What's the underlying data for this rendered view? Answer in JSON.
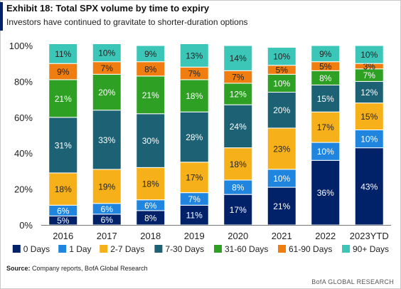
{
  "header": {
    "title": "Exhibit 18: Total SPX volume by time to expiry",
    "subtitle": "Investors have continued to gravitate to shorter-duration options"
  },
  "footer": {
    "source_label": "Source:",
    "source_text": "Company reports, BofA Global Research",
    "brand": "BofA GLOBAL RESEARCH"
  },
  "chart_data": {
    "type": "bar",
    "stacked": true,
    "normalized": true,
    "categories": [
      "2016",
      "2017",
      "2018",
      "2019",
      "2020",
      "2021",
      "2022",
      "2023YTD"
    ],
    "ylim": [
      0,
      100
    ],
    "yticks": [
      "0%",
      "20%",
      "40%",
      "60%",
      "80%",
      "100%"
    ],
    "grid": false,
    "legend_position": "bottom",
    "series": [
      {
        "name": "0 Days",
        "color": "#012169",
        "values": [
          5,
          6,
          8,
          11,
          17,
          21,
          36,
          43
        ],
        "labels": [
          "5%",
          "6%",
          "8%",
          "11%",
          "17%",
          "21%",
          "36%",
          "43%"
        ]
      },
      {
        "name": "1 Day",
        "color": "#1f85de",
        "values": [
          6,
          6,
          6,
          7,
          8,
          10,
          10,
          10
        ],
        "labels": [
          "6%",
          "6%",
          "6%",
          "7%",
          "8%",
          "10%",
          "10%",
          "10%"
        ]
      },
      {
        "name": "2-7 Days",
        "color": "#f5b01a",
        "values": [
          18,
          19,
          18,
          17,
          18,
          23,
          17,
          15
        ],
        "labels": [
          "18%",
          "19%",
          "18%",
          "17%",
          "18%",
          "23%",
          "17%",
          "15%"
        ]
      },
      {
        "name": "7-30 Days",
        "color": "#1d6174",
        "values": [
          31,
          33,
          30,
          28,
          24,
          20,
          15,
          12
        ],
        "labels": [
          "31%",
          "33%",
          "30%",
          "28%",
          "24%",
          "20%",
          "15%",
          "12%"
        ]
      },
      {
        "name": "31-60 Days",
        "color": "#2ea023",
        "values": [
          21,
          20,
          21,
          18,
          12,
          10,
          8,
          7
        ],
        "labels": [
          "21%",
          "20%",
          "21%",
          "18%",
          "12%",
          "10%",
          "8%",
          "7%"
        ]
      },
      {
        "name": "61-90 Days",
        "color": "#ef7d10",
        "values": [
          9,
          7,
          8,
          7,
          7,
          5,
          5,
          3
        ],
        "labels": [
          "9%",
          "7%",
          "8%",
          "7%",
          "7%",
          "5%",
          "5%",
          "3%"
        ]
      },
      {
        "name": "90+ Days",
        "color": "#3cc6b8",
        "values": [
          11,
          10,
          9,
          13,
          14,
          10,
          9,
          10
        ],
        "labels": [
          "11%",
          "10%",
          "9%",
          "13%",
          "14%",
          "10%",
          "9%",
          "10%"
        ]
      }
    ]
  }
}
